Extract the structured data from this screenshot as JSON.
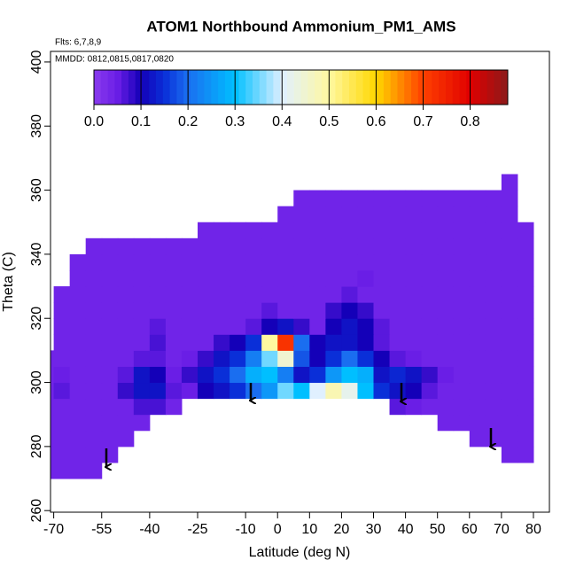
{
  "chart_data": {
    "type": "heatmap",
    "title": "ATOM1 Northbound Ammonium_PM1_AMS",
    "subtitle": "Flts: 6,7,8,9",
    "annotation": "MMDD: 0812,0815,0817,0820",
    "x_label": "Latitude (deg N)",
    "y_label": "Theta (C)",
    "xlim": [
      -71,
      85
    ],
    "ylim": [
      259.5,
      403.3
    ],
    "xticks": [
      -70,
      -55,
      -40,
      -25,
      -10,
      0,
      10,
      20,
      30,
      40,
      50,
      60,
      70,
      80
    ],
    "yticks": [
      260,
      280,
      300,
      320,
      340,
      360,
      380,
      400
    ],
    "zlim": [
      0,
      0.88
    ],
    "zticks": [
      {
        "value": 0,
        "label": "0.0"
      },
      0.1,
      0.2,
      0.3,
      0.4,
      0.5,
      0.6,
      0.7,
      0.8
    ],
    "colorscale": [
      [
        0,
        "#8a3bee"
      ],
      [
        0.05,
        "#6a1ee6"
      ],
      [
        0.1,
        "#1400b8"
      ],
      [
        0.15,
        "#0a2fd8"
      ],
      [
        0.2,
        "#1a6ef0"
      ],
      [
        0.3,
        "#00bfff"
      ],
      [
        0.4,
        "#e0f0ff"
      ],
      [
        0.5,
        "#fff8a0"
      ],
      [
        0.6,
        "#ffd700"
      ],
      [
        0.7,
        "#ff4000"
      ],
      [
        0.8,
        "#e00000"
      ],
      [
        0.88,
        "#8b1a1a"
      ]
    ],
    "x": [
      -72.5,
      -67.5,
      -62.5,
      -57.5,
      -52.5,
      -47.5,
      -42.5,
      -37.5,
      -32.5,
      -27.5,
      -22.5,
      -17.5,
      -12.5,
      -7.5,
      -2.5,
      2.5,
      7.5,
      12.5,
      17.5,
      22.5,
      27.5,
      32.5,
      37.5,
      42.5,
      47.5,
      52.5,
      57.5,
      62.5,
      67.5,
      72.5,
      77.5
    ],
    "y": [
      272.5,
      277.5,
      282.5,
      287.5,
      292.5,
      297.5,
      302.5,
      307.5,
      312.5,
      317.5,
      322.5,
      327.5,
      332.5,
      337.5,
      342.5,
      347.5,
      352.5,
      357.5,
      362.5
    ],
    "z": [
      [
        0.04,
        0.04,
        0.04,
        0.04,
        null,
        null,
        null,
        null,
        null,
        null,
        null,
        null,
        null,
        null,
        null,
        null,
        null,
        null,
        null,
        null,
        null,
        null,
        null,
        null,
        null,
        null,
        null,
        null,
        null,
        null,
        null
      ],
      [
        0.04,
        0.04,
        0.04,
        0.04,
        0.04,
        null,
        null,
        null,
        null,
        null,
        null,
        null,
        null,
        null,
        null,
        null,
        null,
        null,
        null,
        null,
        null,
        null,
        null,
        null,
        null,
        null,
        null,
        null,
        null,
        0.04,
        0.04
      ],
      [
        0.04,
        0.04,
        0.04,
        0.04,
        0.04,
        0.04,
        null,
        null,
        null,
        null,
        null,
        null,
        null,
        null,
        null,
        null,
        null,
        null,
        null,
        null,
        null,
        null,
        null,
        null,
        null,
        null,
        null,
        0.04,
        0.04,
        0.04,
        0.04
      ],
      [
        0.04,
        0.04,
        0.04,
        0.04,
        0.04,
        0.04,
        0.04,
        null,
        null,
        null,
        null,
        null,
        null,
        null,
        null,
        null,
        null,
        null,
        null,
        null,
        null,
        null,
        null,
        null,
        null,
        0.04,
        0.04,
        0.04,
        0.04,
        0.04,
        0.04
      ],
      [
        0.04,
        0.04,
        0.04,
        0.04,
        0.04,
        0.04,
        0.07,
        0.07,
        0.04,
        null,
        null,
        null,
        null,
        null,
        null,
        null,
        null,
        null,
        null,
        null,
        null,
        null,
        0.06,
        0.05,
        0.04,
        0.04,
        0.04,
        0.04,
        0.04,
        0.04,
        0.04
      ],
      [
        0.04,
        0.06,
        0.04,
        0.04,
        0.04,
        0.08,
        0.12,
        0.12,
        0.06,
        0.05,
        0.1,
        0.12,
        0.15,
        0.2,
        0.25,
        0.35,
        0.3,
        0.4,
        0.48,
        0.42,
        0.3,
        0.15,
        0.12,
        0.1,
        0.06,
        0.04,
        0.04,
        0.04,
        0.04,
        0.04,
        0.04
      ],
      [
        0.04,
        0.05,
        0.04,
        0.04,
        0.04,
        0.06,
        0.12,
        0.1,
        0.05,
        0.08,
        0.12,
        0.15,
        0.2,
        0.28,
        0.3,
        0.22,
        0.12,
        0.15,
        0.25,
        0.3,
        0.28,
        0.12,
        0.14,
        0.12,
        0.08,
        0.05,
        0.04,
        0.04,
        0.04,
        0.04,
        0.04
      ],
      [
        0.04,
        0.04,
        0.04,
        0.04,
        0.04,
        0.04,
        0.06,
        0.06,
        0.04,
        0.05,
        0.08,
        0.12,
        0.15,
        0.22,
        0.35,
        0.45,
        0.18,
        0.1,
        0.15,
        0.2,
        0.15,
        0.1,
        0.06,
        0.05,
        0.04,
        0.04,
        0.04,
        0.04,
        0.04,
        0.04,
        0.04
      ],
      [
        null,
        0.04,
        0.04,
        0.04,
        0.04,
        0.04,
        0.04,
        0.07,
        0.04,
        0.04,
        0.04,
        0.08,
        0.1,
        0.15,
        0.5,
        0.72,
        0.2,
        0.1,
        0.12,
        0.12,
        0.1,
        0.06,
        0.04,
        0.04,
        0.04,
        0.04,
        0.04,
        0.04,
        0.04,
        0.04,
        0.04
      ],
      [
        null,
        0.04,
        0.04,
        0.04,
        0.04,
        0.04,
        0.04,
        0.06,
        0.04,
        0.04,
        0.04,
        0.04,
        0.04,
        0.06,
        0.1,
        0.12,
        0.08,
        0.04,
        0.1,
        0.12,
        0.1,
        0.06,
        0.04,
        0.04,
        0.04,
        0.04,
        0.04,
        0.04,
        0.04,
        0.04,
        0.04
      ],
      [
        null,
        0.04,
        0.04,
        0.04,
        0.04,
        0.04,
        0.04,
        0.04,
        0.04,
        0.04,
        0.04,
        0.04,
        0.04,
        0.04,
        0.06,
        0.04,
        0.04,
        0.04,
        0.08,
        0.1,
        0.08,
        0.04,
        0.04,
        0.04,
        0.04,
        0.04,
        0.04,
        0.04,
        0.04,
        0.04,
        0.04
      ],
      [
        null,
        0.04,
        0.04,
        0.04,
        0.04,
        0.04,
        0.04,
        0.04,
        0.04,
        0.04,
        0.04,
        0.04,
        0.04,
        0.04,
        0.04,
        0.04,
        0.04,
        0.04,
        0.04,
        0.06,
        0.04,
        0.04,
        0.04,
        0.04,
        0.04,
        0.04,
        0.04,
        0.04,
        0.04,
        0.04,
        0.04
      ],
      [
        null,
        null,
        0.04,
        0.04,
        0.04,
        0.04,
        0.04,
        0.04,
        0.04,
        0.04,
        0.04,
        0.04,
        0.04,
        0.04,
        0.04,
        0.04,
        0.04,
        0.04,
        0.04,
        0.04,
        0.05,
        0.04,
        0.04,
        0.04,
        0.04,
        0.04,
        0.04,
        0.04,
        0.04,
        0.04,
        0.04
      ],
      [
        null,
        null,
        0.04,
        0.04,
        0.04,
        0.04,
        0.04,
        0.04,
        0.04,
        0.04,
        0.04,
        0.04,
        0.04,
        0.04,
        0.04,
        0.04,
        0.04,
        0.04,
        0.04,
        0.04,
        0.04,
        0.04,
        0.04,
        0.04,
        0.04,
        0.04,
        0.04,
        0.04,
        0.04,
        0.04,
        0.04
      ],
      [
        null,
        null,
        null,
        0.04,
        0.04,
        0.04,
        0.04,
        0.04,
        0.04,
        0.04,
        0.04,
        0.04,
        0.04,
        0.04,
        0.04,
        0.04,
        0.04,
        0.04,
        0.04,
        0.04,
        0.04,
        0.04,
        0.04,
        0.04,
        0.04,
        0.04,
        0.04,
        0.04,
        0.04,
        0.04,
        0.04
      ],
      [
        null,
        null,
        null,
        null,
        null,
        null,
        null,
        null,
        null,
        null,
        0.04,
        0.04,
        0.04,
        0.04,
        0.04,
        0.04,
        0.04,
        0.04,
        0.04,
        0.04,
        0.04,
        0.04,
        0.04,
        0.04,
        0.04,
        0.04,
        0.04,
        0.04,
        0.04,
        0.04,
        0.04
      ],
      [
        null,
        null,
        null,
        null,
        null,
        null,
        null,
        null,
        null,
        null,
        null,
        null,
        null,
        null,
        null,
        0.04,
        0.04,
        0.04,
        0.04,
        0.04,
        0.04,
        0.04,
        0.04,
        0.04,
        0.04,
        0.04,
        0.04,
        0.04,
        0.04,
        0.04,
        null
      ],
      [
        null,
        null,
        null,
        null,
        null,
        null,
        null,
        null,
        null,
        null,
        null,
        null,
        null,
        null,
        null,
        null,
        0.04,
        0.04,
        0.04,
        0.04,
        0.04,
        0.04,
        0.04,
        0.04,
        0.04,
        0.04,
        0.04,
        0.04,
        0.04,
        0.04,
        null
      ],
      [
        null,
        null,
        null,
        null,
        null,
        null,
        null,
        null,
        null,
        null,
        null,
        null,
        null,
        null,
        null,
        null,
        null,
        null,
        null,
        null,
        null,
        null,
        null,
        null,
        null,
        null,
        null,
        null,
        null,
        0.04,
        null
      ]
    ]
  }
}
